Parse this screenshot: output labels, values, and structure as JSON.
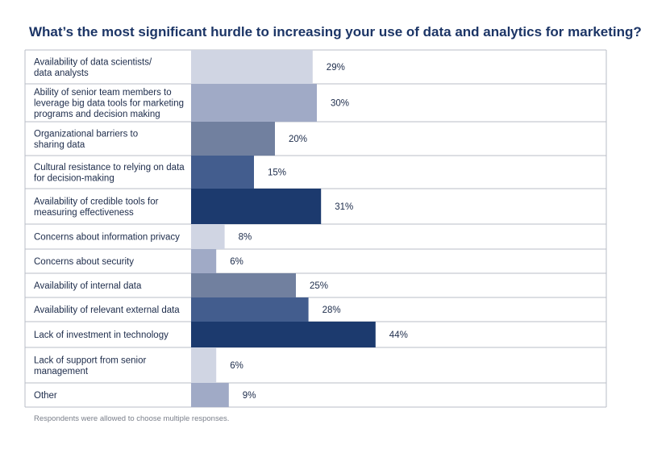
{
  "chart_data": {
    "type": "bar",
    "orientation": "horizontal",
    "title": "What’s the most significant hurdle to increasing your use of data and analytics for marketing?",
    "categories": [
      [
        "Availability of data scientists/",
        "data analysts"
      ],
      [
        "Ability of senior team members to",
        "leverage big data tools for marketing",
        "programs and decision making"
      ],
      [
        "Organizational barriers to",
        "sharing data"
      ],
      [
        "Cultural resistance to relying on data",
        "for decision-making"
      ],
      [
        "Availability of credible tools for",
        "measuring effectiveness"
      ],
      [
        "Concerns about information privacy"
      ],
      [
        "Concerns about security"
      ],
      [
        "Availability of internal data"
      ],
      [
        "Availability of relevant external data"
      ],
      [
        "Lack of investment in technology"
      ],
      [
        "Lack of support from senior",
        "management"
      ],
      [
        "Other"
      ]
    ],
    "values": [
      29,
      30,
      20,
      15,
      31,
      8,
      6,
      25,
      28,
      44,
      6,
      9
    ],
    "value_labels": [
      "29%",
      "30%",
      "20%",
      "15%",
      "31%",
      "8%",
      "6%",
      "25%",
      "28%",
      "44%",
      "6%",
      "9%"
    ],
    "bar_colors": [
      "#d0d5e3",
      "#a0aac6",
      "#71809f",
      "#435d8e",
      "#1c3a6e",
      "#d0d5e3",
      "#a0aac6",
      "#71809f",
      "#435d8e",
      "#1c3a6e",
      "#d0d5e3",
      "#a0aac6"
    ],
    "xlim": [
      0,
      100
    ],
    "note": "Respondents were allowed to choose multiple responses."
  }
}
